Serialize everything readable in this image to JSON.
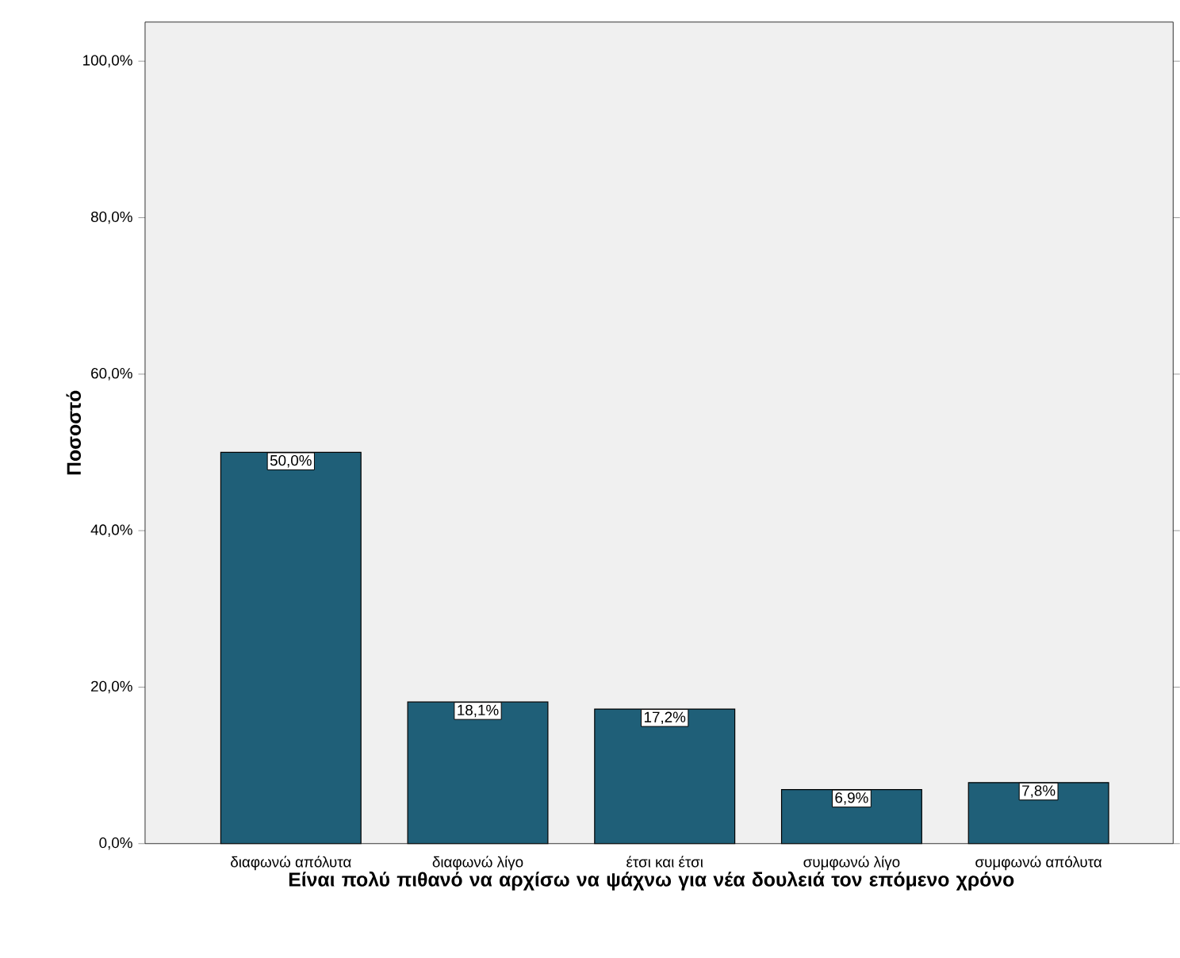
{
  "chart_data": {
    "type": "bar",
    "xlabel": "Είναι πολύ πιθανό να αρχίσω να ψάχνω για νέα δουλειά τον επόμενο χρόνο",
    "ylabel": "Ποσοστό",
    "categories": [
      "διαφωνώ απόλυτα",
      "διαφωνώ λίγο",
      "έτσι και έτσι",
      "συμφωνώ λίγο",
      "συμφωνώ απόλυτα"
    ],
    "values": [
      50.0,
      18.1,
      17.2,
      6.9,
      7.8
    ],
    "value_labels": [
      "50,0%",
      "18,1%",
      "17,2%",
      "6,9%",
      "7,8%"
    ],
    "color": "#1f5f78",
    "ylim": [
      0,
      105
    ],
    "yticks": [
      {
        "value": 0,
        "label": "0,0%"
      },
      {
        "value": 20,
        "label": "20,0%"
      },
      {
        "value": 40,
        "label": "40,0%"
      },
      {
        "value": 60,
        "label": "60,0%"
      },
      {
        "value": 80,
        "label": "80,0%"
      },
      {
        "value": 100,
        "label": "100,0%"
      }
    ],
    "grid": false
  }
}
